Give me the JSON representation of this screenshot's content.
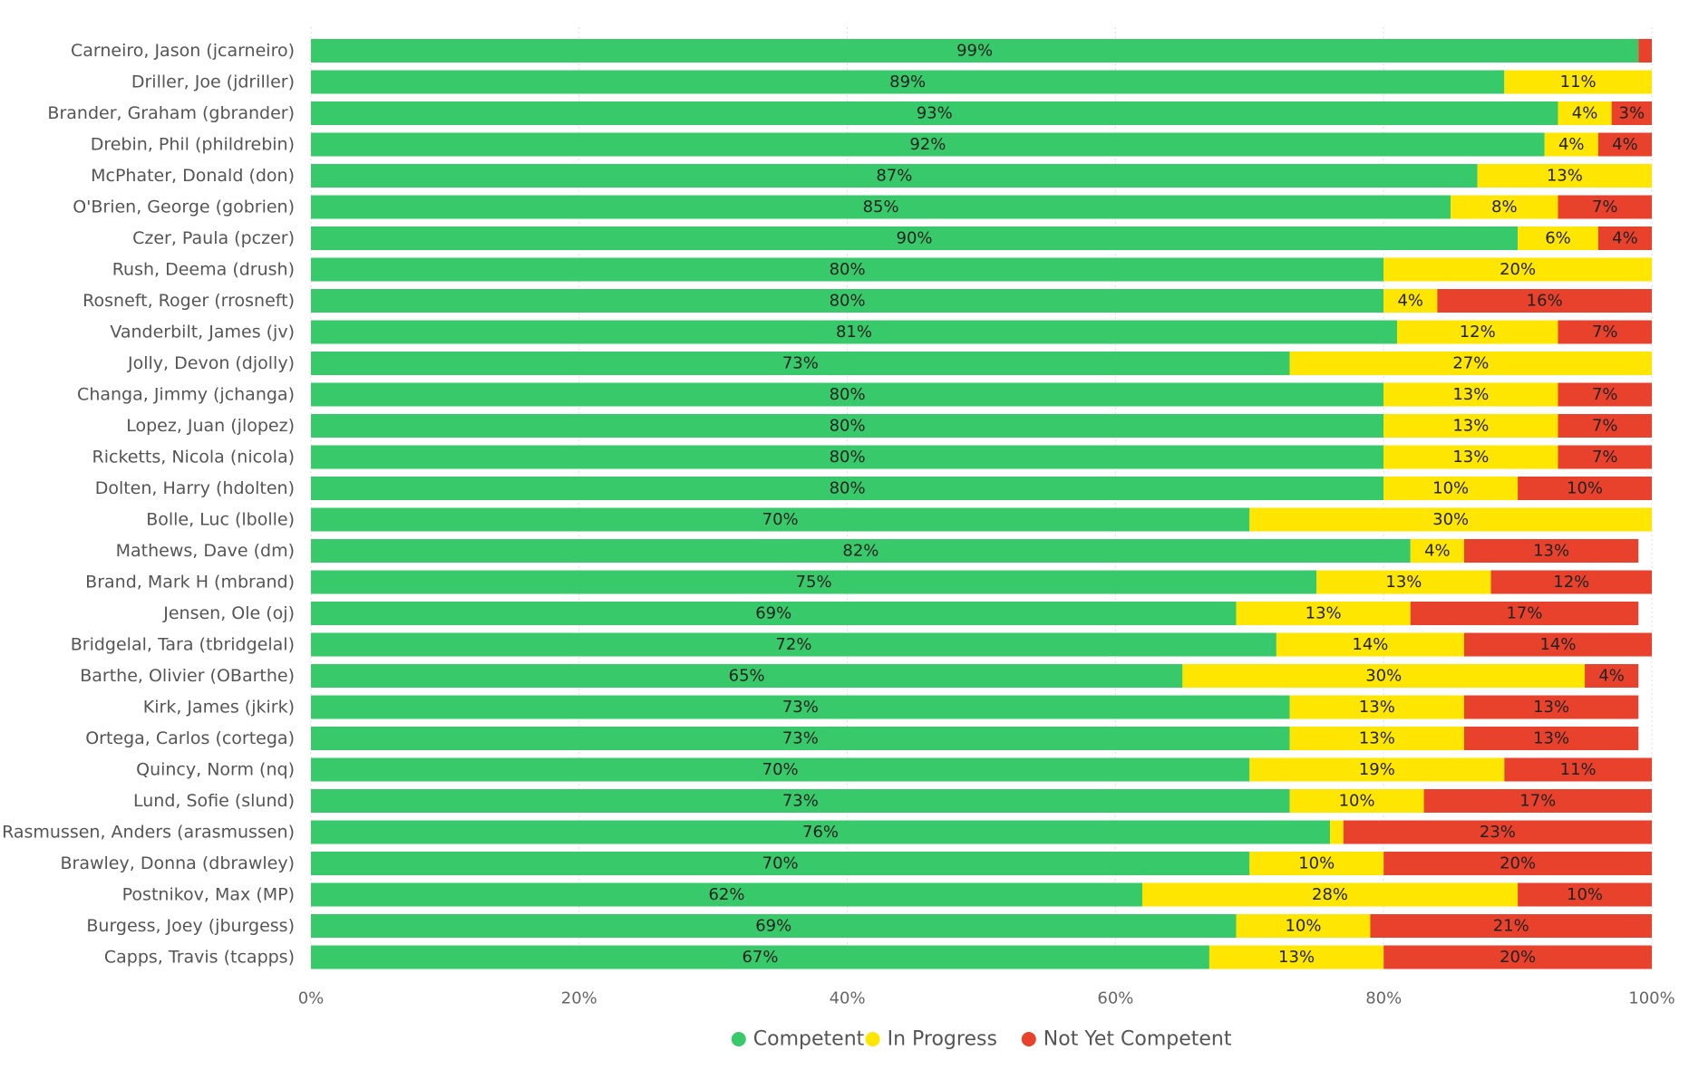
{
  "chart_data": {
    "type": "bar",
    "orientation": "horizontal",
    "stacked": "100%",
    "categories": [
      "Carneiro, Jason (jcarneiro)",
      "Driller, Joe (jdriller)",
      "Brander, Graham (gbrander)",
      "Drebin, Phil (phildrebin)",
      "McPhater, Donald (don)",
      "O'Brien, George (gobrien)",
      "Czer, Paula (pczer)",
      "Rush, Deema (drush)",
      "Rosneft, Roger (rrosneft)",
      "Vanderbilt, James (jv)",
      "Jolly, Devon (djolly)",
      "Changa, Jimmy (jchanga)",
      "Lopez, Juan (jlopez)",
      "Ricketts, Nicola (nicola)",
      "Dolten, Harry (hdolten)",
      "Bolle, Luc (lbolle)",
      "Mathews, Dave (dm)",
      "Brand, Mark H (mbrand)",
      "Jensen, Ole (oj)",
      "Bridgelal, Tara (tbridgelal)",
      "Barthe, Olivier (OBarthe)",
      "Kirk, James (jkirk)",
      "Ortega, Carlos (cortega)",
      "Quincy, Norm (nq)",
      "Lund, Sofie (slund)",
      "Rasmussen, Anders (arasmussen)",
      "Brawley, Donna (dbrawley)",
      "Postnikov, Max (MP)",
      "Burgess, Joey (jburgess)",
      "Capps, Travis (tcapps)"
    ],
    "series": [
      {
        "name": "Competent",
        "color": "#37C96A",
        "values": [
          99,
          89,
          93,
          92,
          87,
          85,
          90,
          80,
          80,
          81,
          73,
          80,
          80,
          80,
          80,
          70,
          82,
          75,
          69,
          72,
          65,
          73,
          73,
          70,
          73,
          76,
          70,
          62,
          69,
          67
        ],
        "labels": [
          "99%",
          "89%",
          "93%",
          "92%",
          "87%",
          "85%",
          "90%",
          "80%",
          "80%",
          "81%",
          "73%",
          "80%",
          "80%",
          "80%",
          "80%",
          "70%",
          "82%",
          "75%",
          "69%",
          "72%",
          "65%",
          "73%",
          "73%",
          "70%",
          "73%",
          "76%",
          "70%",
          "62%",
          "69%",
          "67%"
        ]
      },
      {
        "name": "In Progress",
        "color": "#FFE600",
        "values": [
          0,
          11,
          4,
          4,
          13,
          8,
          6,
          20,
          4,
          12,
          27,
          13,
          13,
          13,
          10,
          30,
          4,
          13,
          13,
          14,
          30,
          13,
          13,
          19,
          10,
          1,
          10,
          28,
          10,
          13
        ],
        "labels": [
          "",
          "11%",
          "4%",
          "4%",
          "13%",
          "8%",
          "6%",
          "20%",
          "4%",
          "12%",
          "27%",
          "13%",
          "13%",
          "13%",
          "10%",
          "30%",
          "4%",
          "13%",
          "13%",
          "14%",
          "30%",
          "13%",
          "13%",
          "19%",
          "10%",
          "",
          "10%",
          "28%",
          "10%",
          "13%"
        ]
      },
      {
        "name": "Not Yet Competent",
        "color": "#E8412C",
        "values": [
          1,
          0,
          3,
          4,
          0,
          7,
          4,
          0,
          16,
          7,
          0,
          7,
          7,
          7,
          10,
          0,
          13,
          12,
          17,
          14,
          4,
          13,
          13,
          11,
          17,
          23,
          20,
          10,
          21,
          20
        ],
        "labels": [
          "",
          "",
          "3%",
          "4%",
          "",
          "7%",
          "4%",
          "",
          "16%",
          "7%",
          "",
          "7%",
          "7%",
          "7%",
          "10%",
          "",
          "13%",
          "12%",
          "17%",
          "14%",
          "4%",
          "13%",
          "13%",
          "11%",
          "17%",
          "23%",
          "20%",
          "10%",
          "21%",
          "20%"
        ]
      }
    ],
    "x_ticks": [
      "0%",
      "20%",
      "40%",
      "60%",
      "80%",
      "100%"
    ],
    "xlim": [
      0,
      100
    ],
    "grid": true,
    "legend_position": "bottom-center"
  }
}
